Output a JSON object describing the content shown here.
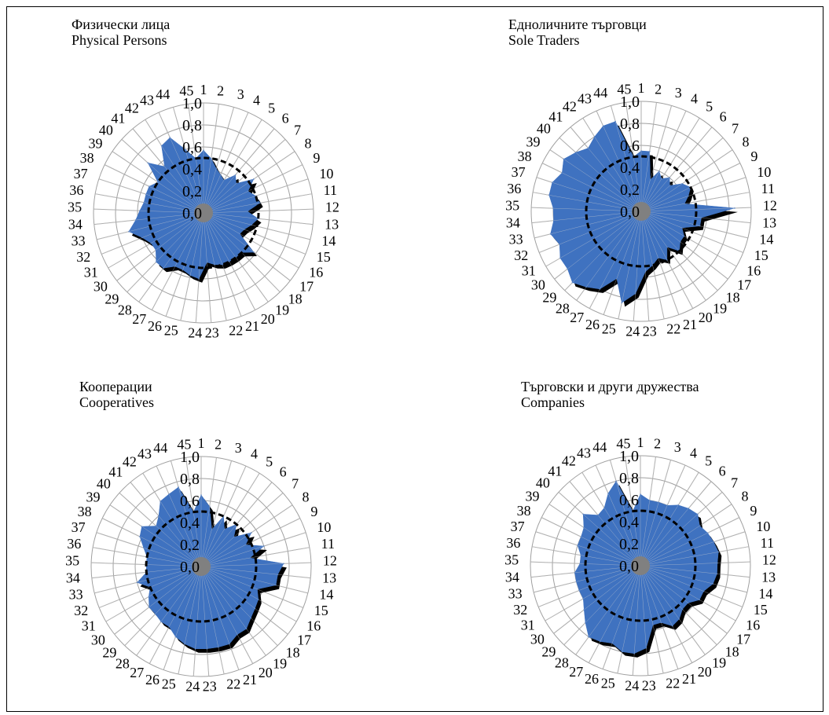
{
  "colors": {
    "fill": "#3f72c0",
    "shadow": "#000000",
    "grid": "#a0a0a0",
    "center": "#808080",
    "dashed": "#000000"
  },
  "chart_data": [
    {
      "type": "radar",
      "title_bg": "Физически лица",
      "title_en": "Physical Persons",
      "categories": [
        "1",
        "2",
        "3",
        "4",
        "5",
        "6",
        "7",
        "8",
        "9",
        "10",
        "11",
        "12",
        "13",
        "14",
        "15",
        "16",
        "17",
        "18",
        "19",
        "20",
        "21",
        "22",
        "23",
        "24",
        "25",
        "26",
        "27",
        "28",
        "29",
        "30",
        "31",
        "32",
        "33",
        "34",
        "35",
        "36",
        "37",
        "38",
        "39",
        "40",
        "41",
        "42",
        "43",
        "44",
        "45"
      ],
      "radial_ticks": [
        "0,0",
        "0,2",
        "0,4",
        "0,6",
        "0,8",
        "1,0"
      ],
      "rlim": [
        0,
        1.0
      ],
      "reference_circle": 0.5,
      "series": [
        {
          "values": [
            0.57,
            0.5,
            0.42,
            0.38,
            0.35,
            0.45,
            0.4,
            0.55,
            0.45,
            0.5,
            0.52,
            0.4,
            0.5,
            0.45,
            0.4,
            0.38,
            0.58,
            0.5,
            0.5,
            0.5,
            0.5,
            0.48,
            0.45,
            0.6,
            0.58,
            0.55,
            0.55,
            0.62,
            0.62,
            0.55,
            0.55,
            0.6,
            0.7,
            0.62,
            0.58,
            0.55,
            0.55,
            0.55,
            0.5,
            0.68,
            0.55,
            0.72,
            0.75,
            0.6,
            0.5
          ]
        }
      ]
    },
    {
      "type": "radar",
      "title_bg": "Едноличните търговци",
      "title_en": "Sole Traders",
      "categories": [
        "1",
        "2",
        "3",
        "4",
        "5",
        "6",
        "7",
        "8",
        "9",
        "10",
        "11",
        "12",
        "13",
        "14",
        "15",
        "16",
        "17",
        "18",
        "19",
        "20",
        "21",
        "22",
        "23",
        "24",
        "25",
        "26",
        "27",
        "28",
        "29",
        "30",
        "31",
        "32",
        "33",
        "34",
        "35",
        "36",
        "37",
        "38",
        "39",
        "40",
        "41",
        "42",
        "43",
        "44",
        "45"
      ],
      "radial_ticks": [
        "0,0",
        "0,2",
        "0,4",
        "0,6",
        "0,8",
        "1,0"
      ],
      "rlim": [
        0,
        1.0
      ],
      "reference_circle": 0.5,
      "series": [
        {
          "values": [
            0.55,
            0.55,
            0.3,
            0.4,
            0.35,
            0.4,
            0.35,
            0.45,
            0.5,
            0.45,
            0.4,
            0.85,
            0.55,
            0.55,
            0.4,
            0.45,
            0.45,
            0.5,
            0.4,
            0.5,
            0.45,
            0.5,
            0.55,
            0.75,
            0.85,
            0.65,
            0.8,
            0.85,
            0.9,
            0.85,
            0.85,
            0.8,
            0.85,
            0.8,
            0.8,
            0.85,
            0.85,
            0.8,
            0.85,
            0.8,
            0.75,
            0.8,
            0.85,
            0.85,
            0.5
          ]
        }
      ]
    },
    {
      "type": "radar",
      "title_bg": "Кооперации",
      "title_en": "Cooperatives",
      "categories": [
        "1",
        "2",
        "3",
        "4",
        "5",
        "6",
        "7",
        "8",
        "9",
        "10",
        "11",
        "12",
        "13",
        "14",
        "15",
        "16",
        "17",
        "18",
        "19",
        "20",
        "21",
        "22",
        "23",
        "24",
        "25",
        "26",
        "27",
        "28",
        "29",
        "30",
        "31",
        "32",
        "33",
        "34",
        "35",
        "36",
        "37",
        "38",
        "39",
        "40",
        "41",
        "42",
        "43",
        "44",
        "45"
      ],
      "radial_ticks": [
        "0,0",
        "0,2",
        "0,4",
        "0,6",
        "0,8",
        "1,0"
      ],
      "rlim": [
        0,
        1.0
      ],
      "reference_circle": 0.5,
      "series": [
        {
          "values": [
            0.65,
            0.55,
            0.35,
            0.5,
            0.4,
            0.5,
            0.4,
            0.55,
            0.45,
            0.6,
            0.45,
            0.75,
            0.7,
            0.7,
            0.55,
            0.6,
            0.62,
            0.65,
            0.7,
            0.7,
            0.75,
            0.75,
            0.75,
            0.75,
            0.72,
            0.68,
            0.62,
            0.62,
            0.6,
            0.6,
            0.55,
            0.5,
            0.6,
            0.5,
            0.5,
            0.5,
            0.55,
            0.62,
            0.65,
            0.55,
            0.6,
            0.7,
            0.72,
            0.75,
            0.5
          ]
        }
      ]
    },
    {
      "type": "radar",
      "title_bg": "Търговски и други дружества",
      "title_en": "Companies",
      "categories": [
        "1",
        "2",
        "3",
        "4",
        "5",
        "6",
        "7",
        "8",
        "9",
        "10",
        "11",
        "12",
        "13",
        "14",
        "15",
        "16",
        "17",
        "18",
        "19",
        "20",
        "21",
        "22",
        "23",
        "24",
        "25",
        "26",
        "27",
        "28",
        "29",
        "30",
        "31",
        "32",
        "33",
        "34",
        "35",
        "36",
        "37",
        "38",
        "39",
        "40",
        "41",
        "42",
        "43",
        "44",
        "45"
      ],
      "radial_ticks": [
        "0,0",
        "0,2",
        "0,4",
        "0,6",
        "0,8",
        "1,0"
      ],
      "rlim": [
        0,
        1.0
      ],
      "reference_circle": 0.5,
      "series": [
        {
          "values": [
            0.65,
            0.6,
            0.6,
            0.6,
            0.65,
            0.68,
            0.7,
            0.65,
            0.68,
            0.7,
            0.72,
            0.7,
            0.7,
            0.68,
            0.62,
            0.62,
            0.55,
            0.55,
            0.6,
            0.62,
            0.55,
            0.55,
            0.75,
            0.8,
            0.8,
            0.75,
            0.78,
            0.8,
            0.72,
            0.65,
            0.6,
            0.6,
            0.6,
            0.6,
            0.55,
            0.55,
            0.6,
            0.6,
            0.62,
            0.7,
            0.6,
            0.62,
            0.72,
            0.8,
            0.5
          ]
        }
      ]
    }
  ]
}
